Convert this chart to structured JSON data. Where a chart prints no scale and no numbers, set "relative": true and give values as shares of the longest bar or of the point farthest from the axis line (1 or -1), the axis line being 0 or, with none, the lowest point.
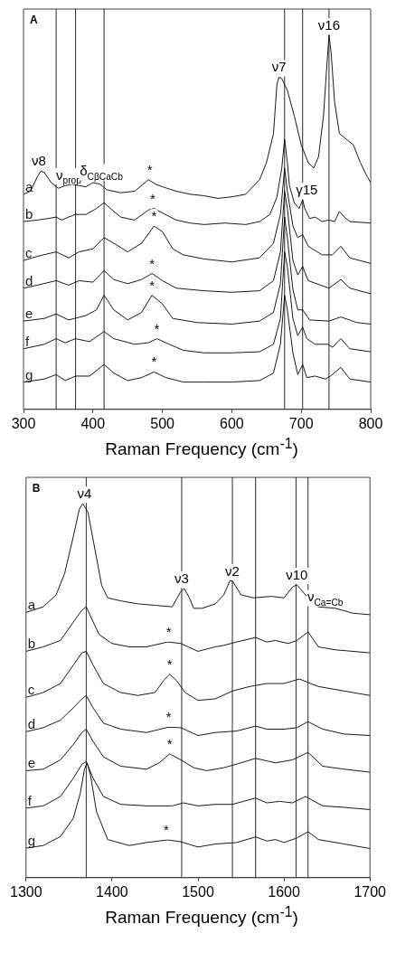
{
  "chart_data": [
    {
      "type": "line",
      "title": "A",
      "xlabel": "Raman  Frequency (cm$^{-1}$)",
      "relative": true,
      "xlim": [
        300,
        800
      ],
      "xticks": [
        300,
        400,
        500,
        600,
        700,
        800
      ],
      "series": [
        {
          "name": "a",
          "color": "#1a1a1a",
          "x": [
            300,
            310,
            320,
            325,
            330,
            340,
            350,
            360,
            370,
            380,
            390,
            400,
            410,
            420,
            440,
            460,
            480,
            490,
            500,
            520,
            540,
            560,
            580,
            600,
            620,
            640,
            650,
            660,
            665,
            668,
            672,
            680,
            690,
            700,
            710,
            718,
            725,
            732,
            737,
            740,
            743,
            748,
            755,
            765,
            775,
            785,
            795,
            800
          ],
          "values": [
            0.575,
            0.583,
            0.622,
            0.637,
            0.633,
            0.606,
            0.591,
            0.598,
            0.602,
            0.598,
            0.595,
            0.606,
            0.602,
            0.587,
            0.579,
            0.583,
            0.614,
            0.602,
            0.595,
            0.583,
            0.575,
            0.571,
            0.564,
            0.568,
            0.575,
            0.614,
            0.66,
            0.737,
            0.869,
            0.888,
            0.884,
            0.853,
            0.784,
            0.707,
            0.66,
            0.645,
            0.676,
            0.784,
            0.923,
            1,
            0.954,
            0.822,
            0.737,
            0.722,
            0.707,
            0.66,
            0.622,
            0.606
          ]
        },
        {
          "name": "b",
          "color": "#1a1a1a",
          "x": [
            300,
            320,
            335,
            347,
            355,
            365,
            375,
            390,
            405,
            416,
            425,
            440,
            460,
            480,
            488,
            500,
            520,
            540,
            560,
            590,
            620,
            640,
            655,
            665,
            672,
            676,
            680,
            683,
            690,
            697,
            702,
            705,
            712,
            720,
            730,
            740,
            748,
            755,
            762,
            770,
            800
          ],
          "values": [
            0.502,
            0.506,
            0.51,
            0.514,
            0.506,
            0.514,
            0.521,
            0.521,
            0.537,
            0.552,
            0.537,
            0.514,
            0.506,
            0.533,
            0.537,
            0.525,
            0.506,
            0.498,
            0.494,
            0.498,
            0.494,
            0.502,
            0.521,
            0.568,
            0.645,
            0.722,
            0.66,
            0.598,
            0.552,
            0.537,
            0.56,
            0.537,
            0.51,
            0.514,
            0.502,
            0.506,
            0.502,
            0.529,
            0.514,
            0.502,
            0.498
          ]
        },
        {
          "name": "c",
          "color": "#1a1a1a",
          "x": [
            300,
            320,
            347,
            365,
            380,
            400,
            416,
            430,
            450,
            470,
            488,
            500,
            515,
            530,
            560,
            600,
            640,
            660,
            670,
            676,
            680,
            688,
            695,
            702,
            710,
            730,
            745,
            757,
            770,
            800
          ],
          "values": [
            0.398,
            0.409,
            0.421,
            0.405,
            0.421,
            0.429,
            0.459,
            0.444,
            0.421,
            0.444,
            0.49,
            0.475,
            0.429,
            0.413,
            0.402,
            0.394,
            0.405,
            0.444,
            0.521,
            0.645,
            0.583,
            0.49,
            0.459,
            0.467,
            0.436,
            0.413,
            0.413,
            0.436,
            0.405,
            0.39
          ]
        },
        {
          "name": "d",
          "color": "#1a1a1a",
          "x": [
            300,
            320,
            347,
            365,
            380,
            400,
            416,
            430,
            450,
            470,
            485,
            500,
            520,
            560,
            600,
            640,
            660,
            670,
            676,
            680,
            688,
            695,
            702,
            710,
            740,
            757,
            770,
            800
          ],
          "values": [
            0.324,
            0.332,
            0.344,
            0.332,
            0.344,
            0.34,
            0.371,
            0.347,
            0.336,
            0.347,
            0.363,
            0.344,
            0.324,
            0.317,
            0.313,
            0.317,
            0.344,
            0.421,
            0.583,
            0.537,
            0.398,
            0.359,
            0.382,
            0.344,
            0.324,
            0.347,
            0.324,
            0.309
          ]
        },
        {
          "name": "e",
          "color": "#1a1a1a",
          "x": [
            300,
            330,
            347,
            365,
            390,
            405,
            416,
            430,
            450,
            470,
            485,
            500,
            515,
            550,
            600,
            640,
            660,
            670,
            676,
            680,
            688,
            695,
            702,
            712,
            740,
            757,
            780,
            800
          ],
          "values": [
            0.236,
            0.243,
            0.255,
            0.239,
            0.251,
            0.266,
            0.305,
            0.266,
            0.239,
            0.259,
            0.305,
            0.282,
            0.243,
            0.232,
            0.228,
            0.236,
            0.259,
            0.336,
            0.514,
            0.459,
            0.32,
            0.266,
            0.266,
            0.239,
            0.236,
            0.247,
            0.232,
            0.228
          ]
        },
        {
          "name": "f",
          "color": "#1a1a1a",
          "x": [
            300,
            330,
            347,
            360,
            375,
            395,
            416,
            430,
            460,
            480,
            492,
            510,
            530,
            560,
            600,
            640,
            660,
            670,
            676,
            680,
            688,
            695,
            702,
            708,
            720,
            738,
            745,
            757,
            770,
            800
          ],
          "values": [
            0.162,
            0.174,
            0.189,
            0.178,
            0.189,
            0.181,
            0.208,
            0.189,
            0.174,
            0.178,
            0.189,
            0.174,
            0.158,
            0.151,
            0.151,
            0.154,
            0.174,
            0.243,
            0.421,
            0.382,
            0.243,
            0.197,
            0.22,
            0.189,
            0.174,
            0.174,
            0.166,
            0.189,
            0.162,
            0.154
          ]
        },
        {
          "name": "g",
          "color": "#1a1a1a",
          "x": [
            300,
            330,
            347,
            360,
            375,
            395,
            416,
            430,
            450,
            470,
            488,
            505,
            530,
            560,
            600,
            640,
            660,
            670,
            676,
            680,
            688,
            695,
            702,
            708,
            720,
            735,
            742,
            757,
            770,
            800
          ],
          "values": [
            0.073,
            0.081,
            0.093,
            0.077,
            0.089,
            0.089,
            0.12,
            0.097,
            0.077,
            0.085,
            0.1,
            0.085,
            0.073,
            0.073,
            0.073,
            0.077,
            0.097,
            0.174,
            0.305,
            0.266,
            0.151,
            0.093,
            0.12,
            0.085,
            0.089,
            0.081,
            0.089,
            0.112,
            0.081,
            0.073
          ]
        }
      ],
      "annotations": [
        {
          "text": "ν8",
          "x": 322,
          "y": 0.637
        },
        {
          "text": "ν$_{prop}$",
          "x": 365,
          "y": 0.6
        },
        {
          "text": "δ$_{CβCaCb}$",
          "x": 412,
          "y": 0.61
        },
        {
          "text": "ν7",
          "x": 668,
          "y": 0.888
        },
        {
          "text": "ν16",
          "x": 740,
          "y": 1
        },
        {
          "text": "γ15",
          "x": 708,
          "y": 0.56
        },
        {
          "text": "*",
          "x": 482,
          "y": 0.614
        },
        {
          "text": "*",
          "x": 486,
          "y": 0.537
        },
        {
          "text": "*",
          "x": 488,
          "y": 0.49
        },
        {
          "text": "*",
          "x": 485,
          "y": 0.363
        },
        {
          "text": "*",
          "x": 485,
          "y": 0.305
        },
        {
          "text": "*",
          "x": 492,
          "y": 0.189
        },
        {
          "text": "*",
          "x": 488,
          "y": 0.1
        }
      ],
      "ref_lines": [
        {
          "axis": "x",
          "value": 347,
          "label": null
        },
        {
          "axis": "x",
          "value": 375,
          "label": null
        },
        {
          "axis": "x",
          "value": 416,
          "label": null
        },
        {
          "axis": "x",
          "value": 676,
          "label": null
        },
        {
          "axis": "x",
          "value": 702,
          "label": null
        },
        {
          "axis": "x",
          "value": 740,
          "label": null
        }
      ]
    },
    {
      "type": "line",
      "title": "B",
      "xlabel": "Raman  Frequency (cm$^{-1}$)",
      "relative": true,
      "xlim": [
        1300,
        1700
      ],
      "xticks": [
        1300,
        1400,
        1500,
        1600,
        1700
      ],
      "series": [
        {
          "name": "a",
          "color": "#1a1a1a",
          "x": [
            1300,
            1320,
            1335,
            1345,
            1355,
            1362,
            1366,
            1372,
            1380,
            1388,
            1395,
            1410,
            1430,
            1450,
            1470,
            1480,
            1484,
            1490,
            1495,
            1505,
            1520,
            1530,
            1537,
            1540,
            1550,
            1565,
            1585,
            1600,
            1610,
            1615,
            1625,
            1640,
            1660,
            1680,
            1700
          ],
          "values": [
            0.709,
            0.724,
            0.756,
            0.814,
            0.912,
            0.985,
            1,
            0.977,
            0.879,
            0.781,
            0.748,
            0.74,
            0.732,
            0.728,
            0.724,
            0.765,
            0.773,
            0.748,
            0.72,
            0.72,
            0.732,
            0.756,
            0.793,
            0.793,
            0.756,
            0.748,
            0.752,
            0.748,
            0.777,
            0.783,
            0.756,
            0.724,
            0.72,
            0.707,
            0.703
          ]
        },
        {
          "name": "b",
          "color": "#1a1a1a",
          "x": [
            1300,
            1320,
            1340,
            1355,
            1365,
            1370,
            1375,
            1385,
            1400,
            1420,
            1440,
            1465,
            1480,
            1500,
            1520,
            1530,
            1545,
            1567,
            1580,
            1590,
            1605,
            1615,
            1628,
            1640,
            1660,
            1700
          ],
          "values": [
            0.605,
            0.617,
            0.634,
            0.683,
            0.715,
            0.724,
            0.699,
            0.65,
            0.626,
            0.617,
            0.617,
            0.63,
            0.626,
            0.605,
            0.617,
            0.621,
            0.63,
            0.642,
            0.63,
            0.634,
            0.626,
            0.634,
            0.657,
            0.617,
            0.609,
            0.601
          ]
        },
        {
          "name": "c",
          "color": "#1a1a1a",
          "x": [
            1300,
            1320,
            1340,
            1355,
            1365,
            1370,
            1378,
            1390,
            1410,
            1430,
            1450,
            1460,
            1467,
            1475,
            1485,
            1500,
            1520,
            1540,
            1560,
            1580,
            1600,
            1618,
            1640,
            1670,
            1700
          ],
          "values": [
            0.482,
            0.495,
            0.519,
            0.568,
            0.601,
            0.605,
            0.568,
            0.519,
            0.495,
            0.487,
            0.495,
            0.527,
            0.544,
            0.527,
            0.495,
            0.474,
            0.478,
            0.499,
            0.511,
            0.519,
            0.519,
            0.531,
            0.511,
            0.499,
            0.487
          ]
        },
        {
          "name": "d",
          "color": "#1a1a1a",
          "x": [
            1300,
            1320,
            1340,
            1355,
            1365,
            1370,
            1378,
            1390,
            1410,
            1440,
            1465,
            1480,
            1500,
            1520,
            1545,
            1567,
            1580,
            1600,
            1615,
            1628,
            1645,
            1670,
            1700
          ],
          "values": [
            0.39,
            0.401,
            0.421,
            0.454,
            0.478,
            0.487,
            0.454,
            0.413,
            0.397,
            0.388,
            0.402,
            0.401,
            0.38,
            0.388,
            0.392,
            0.405,
            0.397,
            0.397,
            0.401,
            0.417,
            0.397,
            0.384,
            0.38
          ]
        },
        {
          "name": "e",
          "color": "#1a1a1a",
          "x": [
            1300,
            1320,
            1340,
            1355,
            1365,
            1370,
            1378,
            1390,
            1410,
            1440,
            1455,
            1467,
            1480,
            1495,
            1510,
            1530,
            1550,
            1567,
            1590,
            1610,
            1628,
            1645,
            1670,
            1700
          ],
          "values": [
            0.286,
            0.29,
            0.315,
            0.356,
            0.388,
            0.397,
            0.364,
            0.323,
            0.298,
            0.29,
            0.307,
            0.331,
            0.315,
            0.294,
            0.286,
            0.294,
            0.307,
            0.319,
            0.307,
            0.315,
            0.335,
            0.298,
            0.29,
            0.282
          ]
        },
        {
          "name": "f",
          "color": "#1a1a1a",
          "x": [
            1300,
            1320,
            1340,
            1355,
            1365,
            1370,
            1378,
            1390,
            1410,
            1440,
            1470,
            1483,
            1500,
            1520,
            1540,
            1567,
            1580,
            1595,
            1610,
            1625,
            1645,
            1670,
            1700
          ],
          "values": [
            0.186,
            0.192,
            0.217,
            0.266,
            0.303,
            0.311,
            0.266,
            0.217,
            0.196,
            0.192,
            0.192,
            0.2,
            0.192,
            0.196,
            0.196,
            0.213,
            0.2,
            0.204,
            0.2,
            0.217,
            0.192,
            0.188,
            0.182
          ]
        },
        {
          "name": "g",
          "color": "#1a1a1a",
          "x": [
            1300,
            1320,
            1340,
            1355,
            1363,
            1368,
            1371,
            1375,
            1382,
            1395,
            1420,
            1440,
            1465,
            1480,
            1500,
            1520,
            1545,
            1567,
            1580,
            1590,
            1600,
            1615,
            1628,
            1640,
            1670,
            1700
          ],
          "values": [
            0.079,
            0.086,
            0.11,
            0.159,
            0.225,
            0.29,
            0.307,
            0.274,
            0.176,
            0.102,
            0.086,
            0.094,
            0.101,
            0.096,
            0.082,
            0.09,
            0.094,
            0.109,
            0.098,
            0.102,
            0.094,
            0.106,
            0.123,
            0.102,
            0.09,
            0.078
          ]
        }
      ],
      "annotations": [
        {
          "text": "ν4",
          "x": 1368,
          "y": 1
        },
        {
          "text": "ν3",
          "x": 1481,
          "y": 0.773
        },
        {
          "text": "ν2",
          "x": 1540,
          "y": 0.793
        },
        {
          "text": "ν10",
          "x": 1615,
          "y": 0.783
        },
        {
          "text": "ν$_{Ca=Cb}$",
          "x": 1648,
          "y": 0.724
        },
        {
          "text": "*",
          "x": 1466,
          "y": 0.63
        },
        {
          "text": "*",
          "x": 1467,
          "y": 0.544
        },
        {
          "text": "*",
          "x": 1466,
          "y": 0.402
        },
        {
          "text": "*",
          "x": 1467,
          "y": 0.331
        },
        {
          "text": "*",
          "x": 1463,
          "y": 0.101
        }
      ],
      "ref_lines": [
        {
          "axis": "x",
          "value": 1370,
          "label": null
        },
        {
          "axis": "x",
          "value": 1481,
          "label": null
        },
        {
          "axis": "x",
          "value": 1540,
          "label": null
        },
        {
          "axis": "x",
          "value": 1567,
          "label": null
        },
        {
          "axis": "x",
          "value": 1614,
          "label": null
        },
        {
          "axis": "x",
          "value": 1628,
          "label": null
        }
      ]
    }
  ]
}
